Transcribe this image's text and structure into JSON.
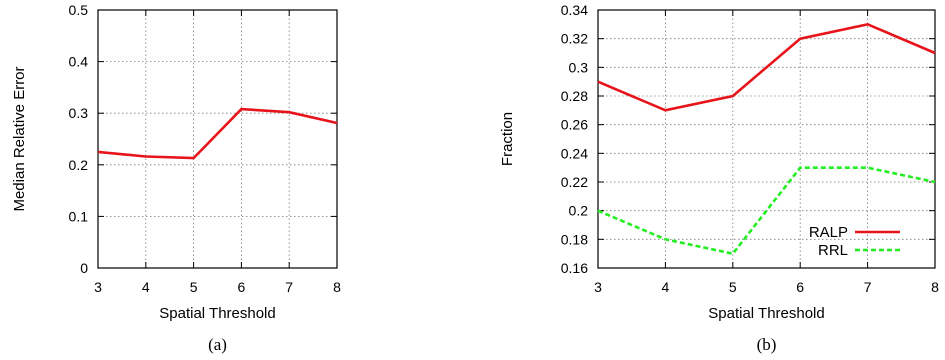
{
  "chart_data": [
    {
      "type": "line",
      "caption": "(a)",
      "xlabel": "Spatial Threshold",
      "ylabel": "Median Relative Error",
      "xlim": [
        3,
        8
      ],
      "ylim": [
        0,
        0.5
      ],
      "xticks": [
        "3",
        "4",
        "5",
        "6",
        "7",
        "8"
      ],
      "yticks": [
        "0",
        "0.1",
        "0.2",
        "0.3",
        "0.4",
        "0.5"
      ],
      "grid": true,
      "x": [
        3,
        4,
        5,
        6,
        7,
        8
      ],
      "series": [
        {
          "values": [
            0.225,
            0.216,
            0.213,
            0.308,
            0.302,
            0.281
          ],
          "color": "#e8141b",
          "dash": "solid"
        }
      ]
    },
    {
      "type": "line",
      "caption": "(b)",
      "xlabel": "Spatial Threshold",
      "ylabel": "Fraction",
      "xlim": [
        3,
        8
      ],
      "ylim": [
        0.16,
        0.34
      ],
      "xticks": [
        "3",
        "4",
        "5",
        "6",
        "7",
        "8"
      ],
      "yticks": [
        "0.16",
        "0.18",
        "0.2",
        "0.22",
        "0.24",
        "0.26",
        "0.28",
        "0.3",
        "0.32",
        "0.34"
      ],
      "grid": true,
      "legend_position": "bottom-right",
      "x": [
        3,
        4,
        5,
        6,
        7,
        8
      ],
      "series": [
        {
          "name": "RALP",
          "values": [
            0.29,
            0.27,
            0.28,
            0.32,
            0.33,
            0.31
          ],
          "color": "#e8141b",
          "dash": "solid"
        },
        {
          "name": "RRL",
          "values": [
            0.2,
            0.18,
            0.17,
            0.23,
            0.23,
            0.22
          ],
          "color": "#22ee22",
          "dash": "dashed"
        }
      ]
    }
  ]
}
